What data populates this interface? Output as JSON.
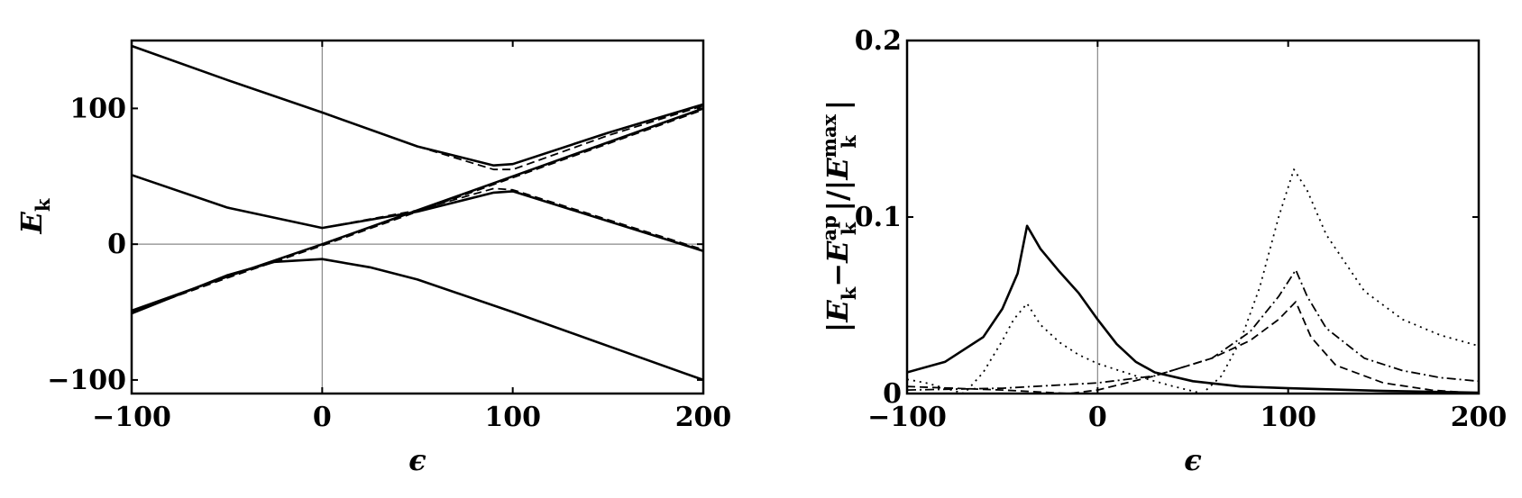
{
  "chart_data": [
    {
      "type": "line",
      "xlabel": "ϵ",
      "ylabel": "E_k",
      "xlim": [
        -100,
        200
      ],
      "ylim": [
        -110,
        150
      ],
      "xticks": [
        -100,
        0,
        100,
        200
      ],
      "xtick_labels": [
        "−100",
        "0",
        "100",
        "200"
      ],
      "yticks": [
        -100,
        0,
        100
      ],
      "ytick_labels": [
        "−100",
        "0",
        "100"
      ],
      "grid": false,
      "zero_lines": true,
      "series": [
        {
          "style": "solid",
          "x": [
            -100,
            -50,
            0,
            50,
            90,
            100,
            150,
            200
          ],
          "values": [
            146,
            121,
            97,
            72,
            58,
            59,
            82,
            103
          ]
        },
        {
          "style": "dashed",
          "x": [
            -100,
            -50,
            0,
            50,
            90,
            100,
            150,
            200
          ],
          "values": [
            146,
            121,
            97,
            72,
            55,
            55,
            80,
            102
          ]
        },
        {
          "style": "solid",
          "x": [
            -100,
            -50,
            0,
            50,
            90,
            100,
            150,
            200
          ],
          "values": [
            51,
            27,
            12,
            24,
            38,
            39,
            17,
            -5
          ]
        },
        {
          "style": "dashed",
          "x": [
            -100,
            -50,
            0,
            50,
            90,
            100,
            150,
            200
          ],
          "values": [
            51,
            27,
            12,
            25,
            41,
            40,
            18,
            -4
          ]
        },
        {
          "style": "solid",
          "x": [
            -100,
            -50,
            0,
            50,
            100,
            150,
            200
          ],
          "values": [
            -49,
            -24,
            0,
            25,
            50,
            75,
            100
          ]
        },
        {
          "style": "dashed",
          "x": [
            -100,
            -50,
            0,
            50,
            100,
            150,
            200
          ],
          "values": [
            -50,
            -25,
            -1,
            24,
            49,
            74,
            99
          ]
        },
        {
          "style": "solid",
          "x": [
            -100,
            -50,
            -25,
            0,
            25,
            50,
            100,
            150,
            200
          ],
          "values": [
            -51,
            -23,
            -13,
            -11,
            -17,
            -26,
            -50,
            -75,
            -100
          ]
        }
      ]
    },
    {
      "type": "line",
      "xlabel": "ϵ",
      "ylabel": "|E_k−E_k^ap|/|E_k^max|",
      "ylabel_parts": {
        "open": "|",
        "e1": "E",
        "sub1": "k",
        "minus": "−",
        "e2": "E",
        "sup2": "ap",
        "sub2": "k",
        "mid": "|/|",
        "e3": "E",
        "sup3": "max",
        "sub3": "k",
        "close": "|"
      },
      "xlim": [
        -100,
        200
      ],
      "ylim": [
        0,
        0.2
      ],
      "xticks": [
        -100,
        0,
        100,
        200
      ],
      "xtick_labels": [
        "−100",
        "0",
        "100",
        "200"
      ],
      "yticks": [
        0,
        0.1,
        0.2
      ],
      "ytick_labels": [
        "0",
        "0.1",
        "0.2"
      ],
      "grid": false,
      "zero_lines": true,
      "series": [
        {
          "style": "solid",
          "x": [
            -100,
            -80,
            -60,
            -50,
            -42,
            -37,
            -30,
            -20,
            -10,
            0,
            10,
            20,
            30,
            50,
            75,
            100,
            150,
            200
          ],
          "values": [
            0.012,
            0.018,
            0.032,
            0.048,
            0.068,
            0.095,
            0.082,
            0.069,
            0.057,
            0.042,
            0.028,
            0.018,
            0.012,
            0.007,
            0.004,
            0.003,
            0.0015,
            0.0005
          ]
        },
        {
          "style": "dotted",
          "x": [
            -100,
            -90,
            -80,
            -70,
            -60,
            -50,
            -44,
            -37,
            -30,
            -20,
            -10,
            0,
            20,
            40,
            55,
            65,
            75,
            85,
            95,
            103,
            110,
            120,
            140,
            160,
            180,
            200
          ],
          "values": [
            0.008,
            0.006,
            0.003,
            0.0,
            0.012,
            0.03,
            0.042,
            0.051,
            0.039,
            0.029,
            0.022,
            0.017,
            0.01,
            0.004,
            0.0,
            0.01,
            0.03,
            0.06,
            0.1,
            0.127,
            0.115,
            0.09,
            0.058,
            0.042,
            0.033,
            0.027
          ]
        },
        {
          "style": "dashdot",
          "x": [
            -100,
            -50,
            0,
            30,
            60,
            80,
            95,
            104,
            110,
            120,
            140,
            160,
            180,
            200
          ],
          "values": [
            0.002,
            0.003,
            0.006,
            0.01,
            0.02,
            0.035,
            0.055,
            0.07,
            0.055,
            0.037,
            0.02,
            0.013,
            0.009,
            0.007
          ]
        },
        {
          "style": "dashed",
          "x": [
            -100,
            -50,
            -15,
            0,
            30,
            60,
            80,
            95,
            104,
            112,
            125,
            150,
            175,
            200
          ],
          "values": [
            0.004,
            0.002,
            0.0,
            0.002,
            0.01,
            0.02,
            0.03,
            0.042,
            0.052,
            0.032,
            0.016,
            0.006,
            0.002,
            0.0
          ]
        }
      ]
    }
  ]
}
